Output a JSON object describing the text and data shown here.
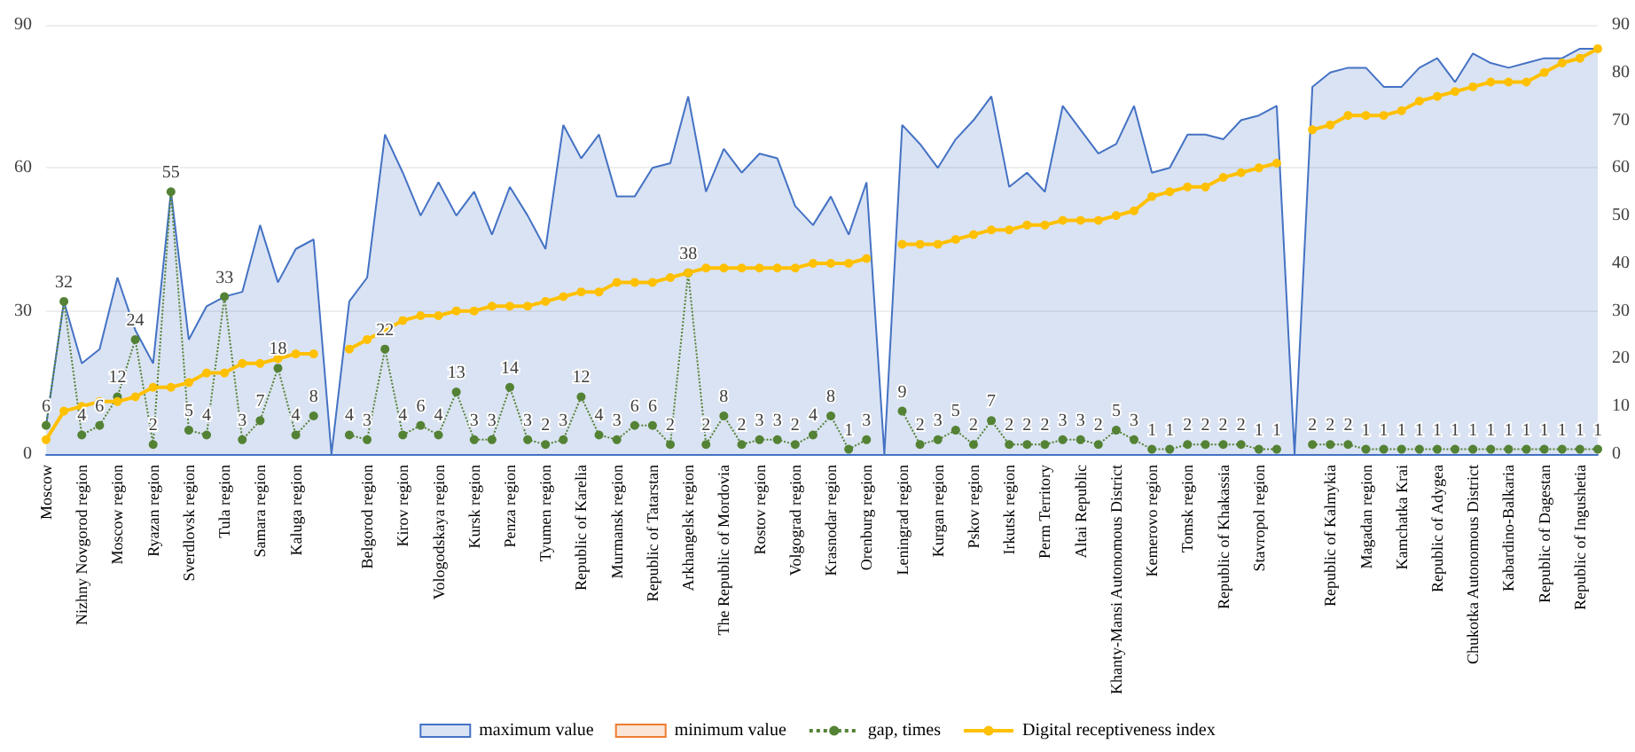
{
  "chart_data": {
    "type": "line",
    "categories": [
      "Moscow",
      null,
      "Nizhny Novgorod region",
      null,
      "Moscow region",
      null,
      "Ryazan region",
      null,
      "Sverdlovsk region",
      null,
      "Tula region",
      null,
      "Samara region",
      null,
      "Kaluga region",
      null,
      null,
      null,
      "Belgorod region",
      null,
      "Kirov region",
      null,
      "Vologodskaya region",
      null,
      "Kursk region",
      null,
      "Penza region",
      null,
      "Tyumen region",
      null,
      "Republic of Karelia",
      null,
      "Murmansk region",
      null,
      "Republic of Tatarstan",
      null,
      "Arkhangelsk region",
      null,
      "The Republic of Mordovia",
      null,
      "Rostov region",
      null,
      "Volgograd region",
      null,
      "Krasnodar region",
      null,
      "Orenburg region",
      null,
      "Leningrad region",
      null,
      "Kurgan region",
      null,
      "Pskov region",
      null,
      "Irkutsk region",
      null,
      "Perm Territory",
      null,
      "Altai Republic",
      null,
      "Khanty-Mansi Autonomous District",
      null,
      "Kemerovo region",
      null,
      "Tomsk region",
      null,
      "Republic of Khakassia",
      null,
      "Stavropol region",
      null,
      null,
      null,
      "Republic of Kalmykia",
      null,
      "Magadan region",
      null,
      "Kamchatka Krai",
      null,
      "Republic of Adygea",
      null,
      "Chukotka Autonomous District",
      null,
      "Kabardino-Balkaria",
      null,
      "Republic of Dagestan",
      null,
      "Republic of Ingushetia",
      null
    ],
    "series": [
      {
        "name": "maximum value",
        "type": "area",
        "color": "#4472c4",
        "marker": "none",
        "values": [
          6,
          32,
          19,
          22,
          37,
          26,
          19,
          55,
          24,
          31,
          33,
          34,
          48,
          36,
          43,
          45,
          0,
          32,
          37,
          67,
          59,
          50,
          57,
          50,
          55,
          46,
          56,
          50,
          43,
          69,
          62,
          67,
          54,
          54,
          60,
          61,
          75,
          55,
          64,
          59,
          63,
          62,
          52,
          48,
          54,
          46,
          57,
          0,
          69,
          65,
          60,
          66,
          70,
          75,
          56,
          59,
          55,
          73,
          68,
          63,
          65,
          73,
          59,
          60,
          67,
          67,
          66,
          70,
          71,
          73,
          0,
          77,
          80,
          81,
          81,
          77,
          77,
          81,
          83,
          78,
          84,
          82,
          81,
          82,
          83,
          83,
          85,
          85
        ]
      },
      {
        "name": "minimum value",
        "type": "area",
        "color": "#ed7d31",
        "marker": "none",
        "values": [
          null,
          null,
          null,
          null,
          null,
          null,
          null,
          null,
          null,
          null,
          null,
          null,
          null,
          null,
          null,
          null,
          null,
          null,
          null,
          null,
          null,
          null,
          null,
          null,
          null,
          null,
          null,
          null,
          null,
          null,
          null,
          null,
          null,
          null,
          null,
          null,
          null,
          null,
          null,
          null,
          null,
          null,
          null,
          null,
          null,
          null,
          null,
          null,
          null,
          null,
          null,
          null,
          null,
          null,
          null,
          null,
          null,
          null,
          null,
          null,
          null,
          null,
          null,
          null,
          null,
          null,
          null,
          null,
          null,
          null,
          null,
          null,
          null,
          null,
          null,
          null,
          null,
          null,
          null,
          null,
          null,
          null,
          null,
          null,
          null,
          null,
          null,
          null
        ]
      },
      {
        "name": "gap, times",
        "color": "#548235",
        "marker": "circle",
        "line_style": "dotted",
        "data_labels": true,
        "values": [
          6,
          32,
          4,
          6,
          12,
          24,
          2,
          55,
          5,
          4,
          33,
          3,
          7,
          18,
          4,
          8,
          null,
          4,
          3,
          22,
          4,
          6,
          4,
          13,
          3,
          3,
          14,
          3,
          2,
          3,
          12,
          4,
          3,
          6,
          6,
          2,
          38,
          2,
          8,
          2,
          3,
          3,
          2,
          4,
          8,
          1,
          3,
          null,
          9,
          2,
          3,
          5,
          2,
          7,
          2,
          2,
          2,
          3,
          3,
          2,
          5,
          3,
          1,
          1,
          2,
          2,
          2,
          2,
          1,
          1,
          null,
          2,
          2,
          2,
          1,
          1,
          1,
          1,
          1,
          1,
          1,
          1,
          1,
          1,
          1,
          1,
          1,
          1
        ]
      },
      {
        "name": "Digital receptiveness index",
        "axis": "y2",
        "color": "#ffc000",
        "marker": "circle",
        "line_style": "solid",
        "values": [
          3,
          9,
          10,
          11,
          11,
          12,
          14,
          14,
          15,
          17,
          17,
          19,
          19,
          20,
          21,
          21,
          null,
          22,
          24,
          26,
          28,
          29,
          29,
          30,
          30,
          31,
          31,
          31,
          32,
          33,
          34,
          34,
          36,
          36,
          36,
          37,
          38,
          39,
          39,
          39,
          39,
          39,
          39,
          40,
          40,
          40,
          41,
          null,
          44,
          44,
          44,
          45,
          46,
          47,
          47,
          48,
          48,
          49,
          49,
          49,
          50,
          51,
          54,
          55,
          56,
          56,
          58,
          59,
          60,
          61,
          null,
          68,
          69,
          71,
          71,
          71,
          72,
          74,
          75,
          76,
          77,
          78,
          78,
          78,
          80,
          82,
          83,
          85
        ]
      }
    ],
    "ylim": [
      0,
      90
    ],
    "yticks": [
      0,
      30,
      60,
      90
    ],
    "y2lim": [
      0,
      90
    ],
    "y2ticks": [
      0,
      10,
      20,
      30,
      40,
      50,
      60,
      70,
      80,
      90
    ],
    "grid": "y",
    "legend": "bottom"
  }
}
